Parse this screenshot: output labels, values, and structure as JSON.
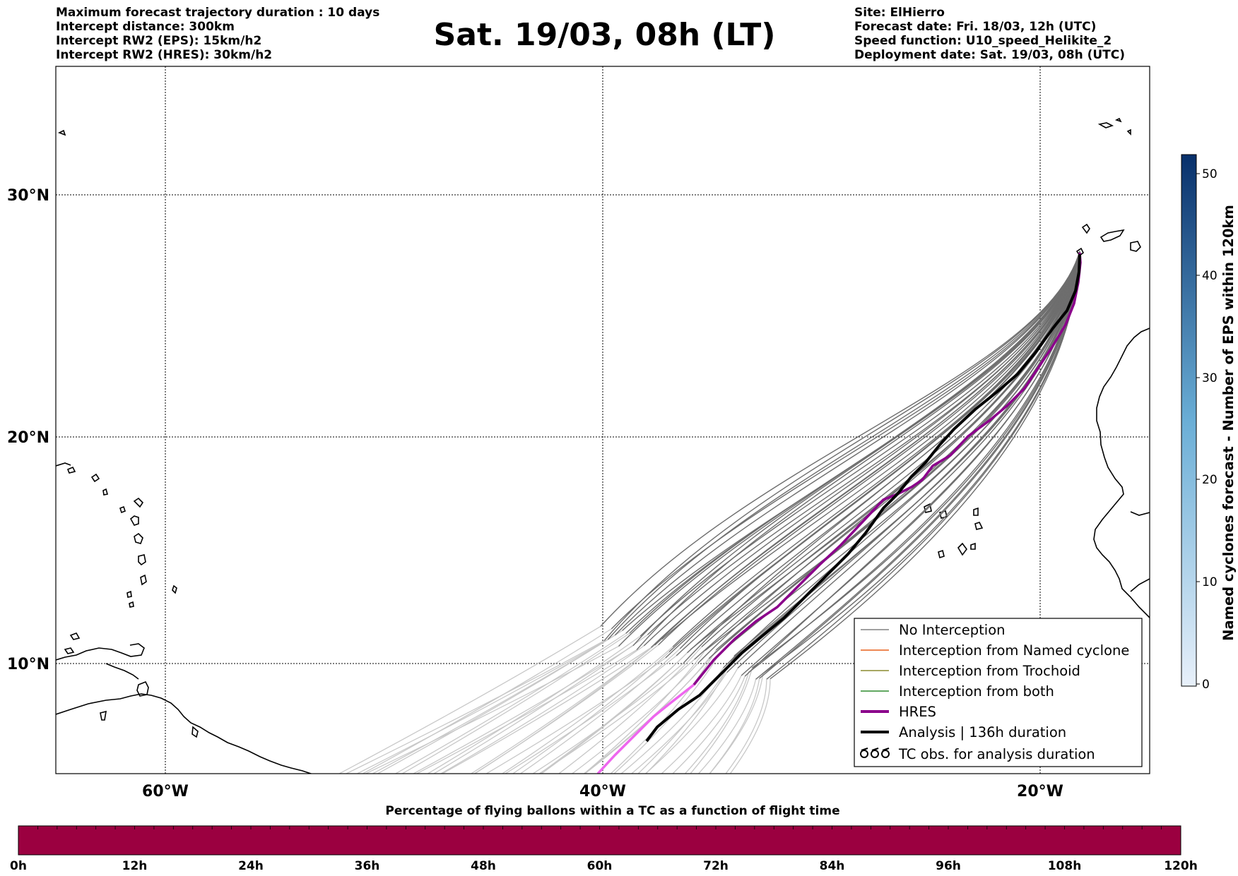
{
  "header": {
    "left": [
      "Maximum forecast trajectory duration : 10 days",
      "Intercept distance: 300km",
      "Intercept RW2 (EPS):  15km/h2",
      "Intercept RW2 (HRES): 30km/h2"
    ],
    "title": "Sat. 19/03, 08h (LT)",
    "right": [
      "Site: ElHierro",
      "Forecast date: Fri. 18/03, 12h (UTC)",
      "Speed function: U10_speed_Helikite_2",
      "Deployment date: Sat. 19/03, 08h (UTC)"
    ]
  },
  "map": {
    "lat_labels": [
      "30°N",
      "20°N",
      "10°N"
    ],
    "lon_labels": [
      "60°W",
      "40°W",
      "20°W"
    ],
    "legend": [
      {
        "label": "No Interception",
        "color": "#808080",
        "icon": "line"
      },
      {
        "label": "Interception from Named cyclone",
        "color": "#e8601c",
        "icon": "line"
      },
      {
        "label": "Interception from Trochoid",
        "color": "#8a8a2e",
        "icon": "line"
      },
      {
        "label": "Interception from both",
        "color": "#2e8b2e",
        "icon": "line"
      },
      {
        "label": "HRES",
        "color": "#8b008b",
        "icon": "thick-line"
      },
      {
        "label": "Analysis | 136h duration",
        "color": "#000000",
        "icon": "thick-line"
      },
      {
        "label": "TC obs. for analysis duration",
        "color": "#000000",
        "icon": "cyclone-symbols"
      }
    ]
  },
  "colorbar_right": {
    "label": "Named cyclones forecast - Number of EPS within 120km",
    "ticks": [
      "0",
      "10",
      "20",
      "30",
      "40",
      "50"
    ],
    "color_low": "#e8f0fa",
    "color_high": "#08306b"
  },
  "colorbar_bottom": {
    "title": "Percentage of flying ballons within a TC as a function of flight time",
    "ticks": [
      "0h",
      "12h",
      "24h",
      "36h",
      "48h",
      "60h",
      "72h",
      "84h",
      "96h",
      "108h",
      "120h"
    ],
    "color": "#9b0040"
  }
}
